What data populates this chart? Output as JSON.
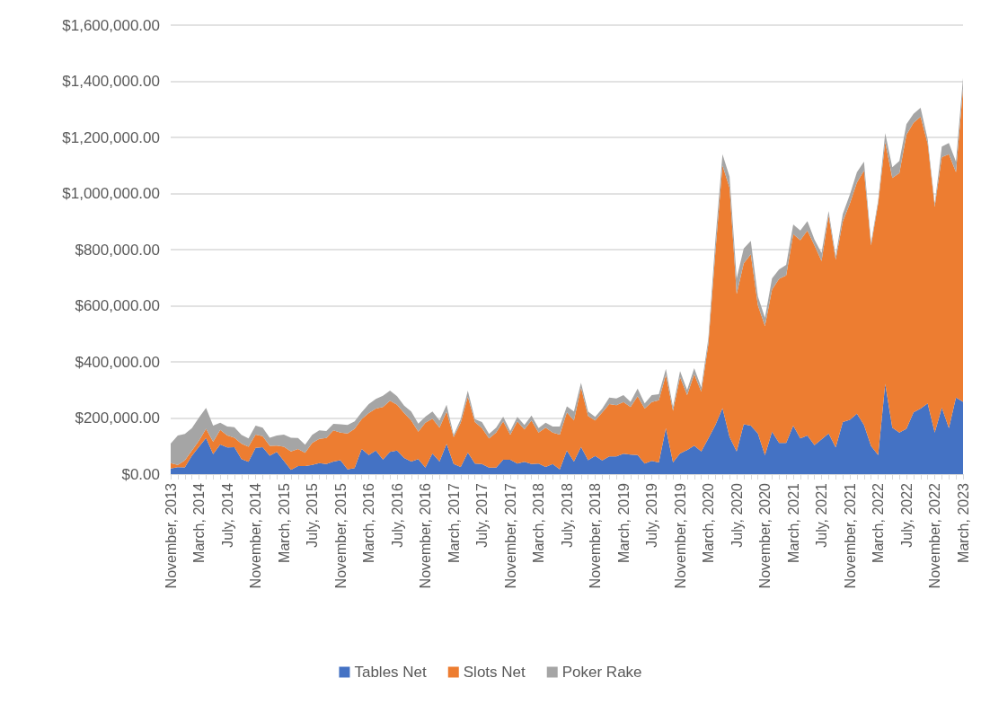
{
  "chart_data": {
    "type": "area",
    "stacked": true,
    "grid": "y",
    "legend": "bottom",
    "categories": [
      "November, 2013",
      null,
      null,
      null,
      "March, 2014",
      null,
      null,
      null,
      "July, 2014",
      null,
      null,
      null,
      "November, 2014",
      null,
      null,
      null,
      "March, 2015",
      null,
      null,
      null,
      "July, 2015",
      null,
      null,
      null,
      "November, 2015",
      null,
      null,
      null,
      "March, 2016",
      null,
      null,
      null,
      "July, 2016",
      null,
      null,
      null,
      "November, 2016",
      null,
      null,
      null,
      "March, 2017",
      null,
      null,
      null,
      "July, 2017",
      null,
      null,
      null,
      "November, 2017",
      null,
      null,
      null,
      "March, 2018",
      null,
      null,
      null,
      "July, 2018",
      null,
      null,
      null,
      "November, 2018",
      null,
      null,
      null,
      "March, 2019",
      null,
      null,
      null,
      "July, 2019",
      null,
      null,
      null,
      "November, 2019",
      null,
      null,
      null,
      "March, 2020",
      null,
      null,
      null,
      "July, 2020",
      null,
      null,
      null,
      "November, 2020",
      null,
      null,
      null,
      "March, 2021",
      null,
      null,
      null,
      "July, 2021",
      null,
      null,
      null,
      "November, 2021",
      null,
      null,
      null,
      "March, 2022",
      null,
      null,
      null,
      "July, 2022",
      null,
      null,
      null,
      "November, 2022",
      null,
      null,
      null,
      "March, 2023"
    ],
    "ylim": [
      0,
      1600000
    ],
    "yticks": [
      {
        "value": 0,
        "label": "$0.00"
      },
      {
        "value": 200000,
        "label": "$200,000.00"
      },
      {
        "value": 400000,
        "label": "$400,000.00"
      },
      {
        "value": 600000,
        "label": "$600,000.00"
      },
      {
        "value": 800000,
        "label": "$800,000.00"
      },
      {
        "value": 1000000,
        "label": "$1,000,000.00"
      },
      {
        "value": 1200000,
        "label": "$1,200,000.00"
      },
      {
        "value": 1400000,
        "label": "$1,400,000.00"
      },
      {
        "value": 1600000,
        "label": "$1,600,000.00"
      }
    ],
    "series": [
      {
        "name": "Tables Net",
        "color": "#4472c4",
        "values": [
          20000,
          25000,
          24000,
          66000,
          98000,
          129000,
          71000,
          106000,
          95000,
          96000,
          54000,
          44000,
          94000,
          96000,
          66000,
          79000,
          47000,
          15000,
          29000,
          29000,
          33000,
          39000,
          36000,
          45000,
          50000,
          17000,
          22000,
          90000,
          68000,
          84000,
          52000,
          79000,
          84000,
          58000,
          45000,
          54000,
          23000,
          74000,
          45000,
          108000,
          36000,
          26000,
          77000,
          38000,
          36000,
          23000,
          23000,
          51000,
          51000,
          38000,
          44000,
          36000,
          38000,
          26000,
          36000,
          17000,
          84000,
          45000,
          97000,
          50000,
          65000,
          49000,
          63000,
          63000,
          73000,
          70000,
          68000,
          38000,
          47000,
          42000,
          164000,
          42000,
          74000,
          86000,
          102000,
          81000,
          127000,
          175000,
          235000,
          132000,
          81000,
          178000,
          173000,
          145000,
          67000,
          151000,
          111000,
          111000,
          173000,
          127000,
          138000,
          103000,
          124000,
          145000,
          95000,
          186000,
          194000,
          215000,
          175000,
          100000,
          68000,
          322000,
          166000,
          148000,
          162000,
          220000,
          234000,
          252000,
          148000,
          237000,
          164000,
          273000,
          258000
        ]
      },
      {
        "name": "Slots Net",
        "color": "#ed7d31",
        "values": [
          19000,
          8000,
          25000,
          18000,
          21000,
          33000,
          44000,
          52000,
          43000,
          34000,
          55000,
          54000,
          47000,
          39000,
          35000,
          23000,
          51000,
          66000,
          61000,
          47000,
          78000,
          87000,
          93000,
          111000,
          98000,
          128000,
          140000,
          106000,
          150000,
          150000,
          187000,
          183000,
          163000,
          160000,
          146000,
          97000,
          160000,
          124000,
          121000,
          115000,
          96000,
          157000,
          199000,
          148000,
          128000,
          104000,
          125000,
          137000,
          89000,
          150000,
          115000,
          155000,
          110000,
          140000,
          112000,
          124000,
          136000,
          146000,
          211000,
          157000,
          126000,
          171000,
          187000,
          183000,
          184000,
          169000,
          210000,
          196000,
          210000,
          221000,
          190000,
          184000,
          272000,
          196000,
          254000,
          213000,
          336000,
          619000,
          865000,
          888000,
          561000,
          573000,
          610000,
          457000,
          461000,
          507000,
          585000,
          597000,
          682000,
          707000,
          730000,
          712000,
          635000,
          777000,
          669000,
          714000,
          770000,
          824000,
          907000,
          715000,
          896000,
          861000,
          889000,
          925000,
          1048000,
          1032000,
          1040000,
          926000,
          806000,
          893000,
          976000,
          803000,
          1117000
        ]
      },
      {
        "name": "Poker Rake",
        "color": "#a5a5a5",
        "values": [
          70000,
          105000,
          94000,
          80000,
          83000,
          74000,
          58000,
          25000,
          32000,
          37000,
          31000,
          29000,
          32000,
          31000,
          29000,
          36000,
          43000,
          49000,
          39000,
          29000,
          29000,
          30000,
          25000,
          23000,
          30000,
          30000,
          26000,
          25000,
          32000,
          34000,
          40000,
          36000,
          31000,
          26000,
          32000,
          29000,
          22000,
          25000,
          25000,
          24000,
          8000,
          13000,
          22000,
          10000,
          22000,
          16000,
          18000,
          17000,
          14000,
          16000,
          16000,
          18000,
          16000,
          17000,
          22000,
          29000,
          22000,
          32000,
          18000,
          16000,
          13000,
          14000,
          23000,
          24000,
          25000,
          19000,
          27000,
          18000,
          25000,
          22000,
          21000,
          13000,
          21000,
          18000,
          22000,
          16000,
          21000,
          42000,
          40000,
          40000,
          56000,
          53000,
          48000,
          32000,
          30000,
          40000,
          34000,
          38000,
          35000,
          34000,
          34000,
          21000,
          29000,
          16000,
          14000,
          27000,
          32000,
          37000,
          32000,
          11000,
          11000,
          32000,
          39000,
          43000,
          37000,
          32000,
          32000,
          16000,
          10000,
          37000,
          40000,
          38000,
          37000
        ]
      }
    ]
  }
}
